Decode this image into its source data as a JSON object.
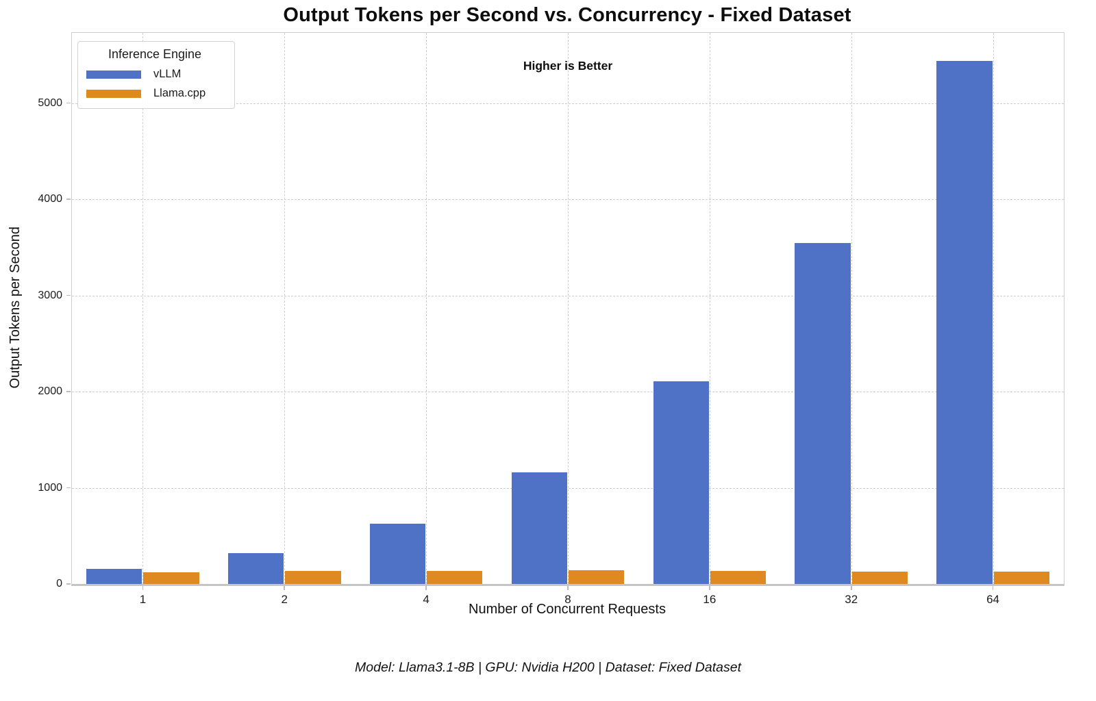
{
  "title": "Output Tokens per Second vs. Concurrency - Fixed Dataset",
  "annotation": "Higher is Better",
  "footer": "Model: Llama3.1-8B | GPU: Nvidia H200 | Dataset: Fixed Dataset",
  "legend": {
    "title": "Inference Engine",
    "entries": [
      {
        "label": "vLLM",
        "color": "#4F72C7"
      },
      {
        "label": "Llama.cpp",
        "color": "#DF8A20"
      }
    ]
  },
  "colors": {
    "vllm_blue": "#4F72C7",
    "llamacpp_orange": "#DF8A20",
    "gridline": "#cdcdcd",
    "spine": "#cccccc",
    "text": "#111111"
  },
  "chart_data": {
    "type": "bar",
    "title": "Output Tokens per Second vs. Concurrency - Fixed Dataset",
    "xlabel": "Number of Concurrent Requests",
    "ylabel": "Output Tokens per Second",
    "categories": [
      "1",
      "2",
      "4",
      "8",
      "16",
      "32",
      "64"
    ],
    "series": [
      {
        "name": "vLLM",
        "color": "#4F72C7",
        "values": [
          155,
          322,
          630,
          1160,
          2110,
          3545,
          5440
        ]
      },
      {
        "name": "Llama.cpp",
        "color": "#DF8A20",
        "values": [
          120,
          134,
          137,
          139,
          138,
          131,
          126
        ]
      }
    ],
    "yticks": [
      0,
      1000,
      2000,
      3000,
      4000,
      5000
    ],
    "ylim": [
      0,
      5730
    ],
    "grid": true,
    "grid_style": "dashed",
    "legend_position": "upper left",
    "annotation": "Higher is Better",
    "bar_group_width": 0.8
  }
}
